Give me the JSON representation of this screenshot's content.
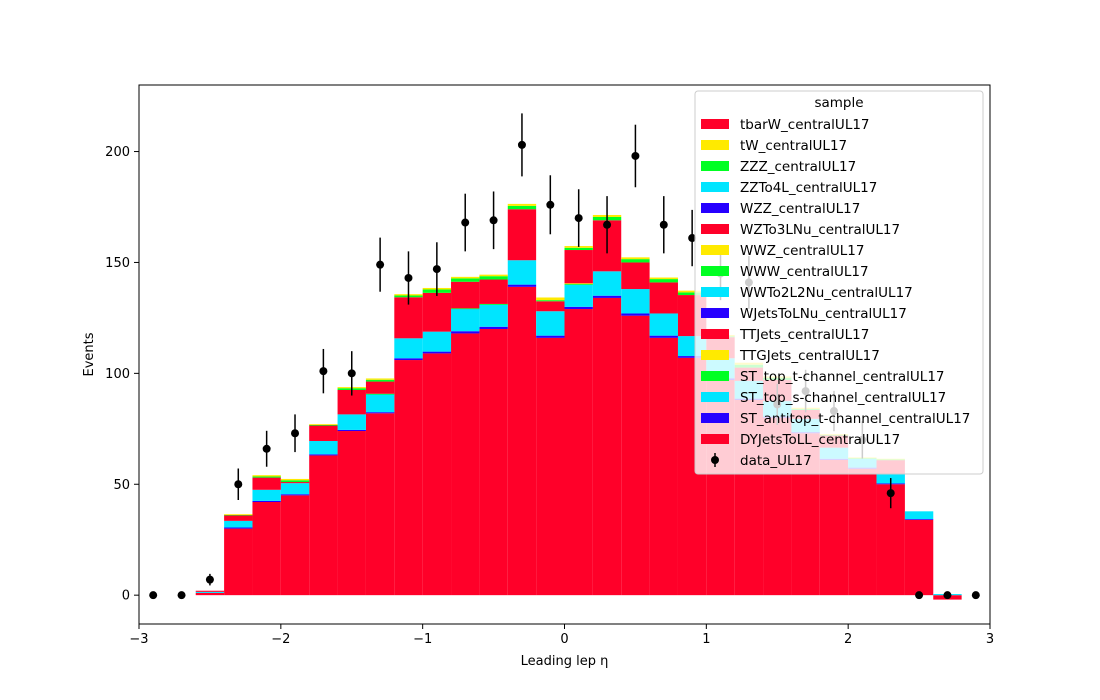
{
  "chart_data": {
    "type": "bar",
    "stacked": true,
    "xlabel": "Leading lep η",
    "ylabel": "Events",
    "xlim": [
      -3,
      3
    ],
    "ylim": [
      -13,
      230
    ],
    "xticks": [
      -3,
      -2,
      -1,
      0,
      1,
      2,
      3
    ],
    "xtick_labels": [
      "−3",
      "−2",
      "−1",
      "0",
      "1",
      "2",
      "3"
    ],
    "yticks": [
      0,
      50,
      100,
      150,
      200
    ],
    "grid": false,
    "legend_title": "sample",
    "legend_position": "top-right",
    "bin_edges": [
      -3.0,
      -2.8,
      -2.6,
      -2.4,
      -2.2,
      -2.0,
      -1.8,
      -1.6,
      -1.4,
      -1.2,
      -1.0,
      -0.8,
      -0.6,
      -0.4,
      -0.2,
      0.0,
      0.2,
      0.4,
      0.6,
      0.8,
      1.0,
      1.2,
      1.4,
      1.6,
      1.8,
      2.0,
      2.2,
      2.4,
      2.6,
      2.8,
      3.0
    ],
    "series": [
      {
        "name": "DYJetsToLL_centralUL17",
        "color": "#ff0029",
        "values": [
          0,
          0,
          1,
          30,
          42,
          45,
          63,
          74,
          82,
          106,
          109,
          118,
          120,
          139,
          116,
          129,
          134,
          126,
          116,
          107,
          97,
          88,
          80,
          73,
          61,
          57,
          50,
          34,
          -2,
          0
        ]
      },
      {
        "name": "ST_antitop_t-channel_centralUL17",
        "color": "#2600ff",
        "values": [
          0,
          0,
          0,
          0.5,
          0.5,
          0.5,
          0.5,
          0.5,
          0.5,
          0.8,
          0.8,
          1,
          1,
          1,
          1,
          1,
          1,
          1,
          1,
          0.8,
          0.8,
          0.6,
          0.5,
          0.5,
          0.5,
          0.5,
          0.4,
          0.3,
          0,
          0
        ]
      },
      {
        "name": "ST_top_s-channel_centralUL17",
        "color": "#00e5ff",
        "values": [
          0,
          0,
          0.5,
          3,
          5,
          5,
          6,
          7,
          8,
          9,
          9,
          10,
          10,
          11,
          11,
          10,
          11,
          11,
          10,
          9,
          9,
          8,
          7,
          6,
          5,
          4,
          4,
          3.5,
          0.5,
          0
        ]
      },
      {
        "name": "ST_top_t-channel_centralUL17",
        "color": "#00ff22",
        "values": [
          0,
          0,
          0,
          0,
          0,
          0,
          0,
          0,
          0.3,
          0,
          0,
          0.3,
          0.3,
          0,
          0,
          0.3,
          0,
          0,
          0,
          0,
          0,
          0,
          0,
          0,
          0,
          0,
          0,
          0,
          0,
          0
        ]
      },
      {
        "name": "TTGJets_centralUL17",
        "color": "#ffea00",
        "values": [
          0,
          0,
          0,
          0,
          0,
          0,
          0,
          0,
          0,
          0,
          0,
          0,
          0,
          0,
          0,
          0.3,
          0,
          0,
          0,
          0,
          0,
          0,
          0,
          0,
          0,
          0,
          0,
          0,
          0,
          0
        ]
      },
      {
        "name": "TTJets_centralUL17",
        "color": "#ff0029",
        "values": [
          0,
          0,
          0.5,
          2.5,
          5.5,
          0.5,
          7,
          11,
          5.5,
          18.5,
          17.5,
          12,
          11,
          23,
          4.5,
          15,
          23,
          12,
          14,
          18.5,
          9.5,
          6,
          9.5,
          4,
          5.5,
          0,
          6.5,
          0,
          0,
          0
        ]
      },
      {
        "name": "WJetsToLNu_centralUL17",
        "color": "#2600ff",
        "values": [
          0,
          0,
          0,
          0,
          0,
          0,
          0,
          0,
          0,
          0,
          0,
          0,
          0,
          0,
          0,
          0,
          0,
          0,
          0,
          0,
          0,
          0,
          0,
          0,
          0,
          0,
          0,
          0,
          0,
          0
        ]
      },
      {
        "name": "WWTo2L2Nu_centralUL17",
        "color": "#00e5ff",
        "values": [
          0,
          0,
          0,
          0,
          0,
          0,
          0,
          0,
          0,
          0,
          0,
          0,
          0,
          0,
          0,
          0,
          0,
          0,
          0,
          0,
          0,
          0,
          0,
          0,
          0,
          0,
          0,
          0,
          0,
          0
        ]
      },
      {
        "name": "WWW_centralUL17",
        "color": "#00ff22",
        "values": [
          0,
          0,
          0,
          0.3,
          0.5,
          0.8,
          0.3,
          0.8,
          0.8,
          0.8,
          1.5,
          1.5,
          1.5,
          1.5,
          0.5,
          1,
          1.5,
          1.5,
          1.5,
          1.2,
          0.4,
          1.3,
          1,
          0.4,
          0.3,
          0.3,
          0.3,
          0,
          0,
          0
        ]
      },
      {
        "name": "WWZ_centralUL17",
        "color": "#ffea00",
        "values": [
          0,
          0,
          0,
          0.2,
          0.6,
          0.6,
          0.3,
          0.5,
          0.6,
          0.6,
          0.7,
          0.7,
          0.7,
          0.9,
          1.2,
          0.8,
          0.9,
          0.8,
          0.7,
          0.8,
          0.6,
          0.9,
          0.6,
          0.6,
          0.3,
          0.3,
          0.3,
          0,
          0,
          0
        ]
      },
      {
        "name": "WZTo3LNu_centralUL17",
        "color": "#ff0029",
        "values": [
          0,
          0,
          0,
          0,
          0,
          0,
          0,
          0,
          0,
          0,
          0,
          0,
          0,
          0,
          0,
          0,
          0,
          0,
          0,
          0,
          0,
          0,
          0,
          0,
          0,
          0,
          0,
          0,
          0,
          0
        ]
      },
      {
        "name": "WZZ_centralUL17",
        "color": "#2600ff",
        "values": [
          0,
          0,
          0,
          0,
          0,
          0,
          0,
          0,
          0,
          0,
          0,
          0,
          0,
          0,
          0,
          0,
          0,
          0,
          0,
          0,
          0,
          0,
          0,
          0,
          0,
          0,
          0,
          0,
          0,
          0
        ]
      },
      {
        "name": "ZZTo4L_centralUL17",
        "color": "#00e5ff",
        "values": [
          0,
          0,
          0,
          0,
          0,
          0,
          0,
          0,
          0,
          0,
          0,
          0,
          0,
          0,
          0,
          0,
          0,
          0,
          0,
          0,
          0,
          0,
          0,
          0,
          0,
          0,
          0,
          0,
          0,
          0
        ]
      },
      {
        "name": "ZZZ_centralUL17",
        "color": "#00ff22",
        "values": [
          0,
          0,
          0,
          0,
          0,
          0,
          0,
          0,
          0,
          0,
          0,
          0,
          0,
          0,
          0,
          0,
          0,
          0,
          0,
          0,
          0,
          0,
          0,
          0,
          0,
          0,
          0,
          0,
          0,
          0
        ]
      },
      {
        "name": "tW_centralUL17",
        "color": "#ffea00",
        "values": [
          0,
          0,
          0,
          0,
          0,
          0,
          0,
          0,
          0,
          0,
          0,
          0,
          0,
          0,
          0,
          0,
          0,
          0,
          0,
          0,
          0,
          0,
          0,
          0,
          0,
          0,
          0,
          0,
          0,
          0
        ]
      },
      {
        "name": "tbarW_centralUL17",
        "color": "#ff0029",
        "values": [
          0,
          0,
          0,
          0,
          0,
          0,
          0,
          0,
          0,
          0,
          0,
          0,
          0,
          0,
          0,
          0,
          0,
          0,
          0,
          0,
          0,
          0,
          0,
          0,
          0,
          0,
          0,
          0,
          0,
          0
        ]
      }
    ],
    "data": {
      "name": "data_UL17",
      "color": "#000000",
      "x": [
        -2.9,
        -2.7,
        -2.5,
        -2.3,
        -2.1,
        -1.9,
        -1.7,
        -1.5,
        -1.3,
        -1.1,
        -0.9,
        -0.7,
        -0.5,
        -0.3,
        -0.1,
        0.1,
        0.3,
        0.5,
        0.7,
        0.9,
        1.1,
        1.3,
        1.5,
        1.7,
        1.9,
        2.1,
        2.3,
        2.5,
        2.7,
        2.9
      ],
      "y": [
        0,
        0,
        7,
        50,
        66,
        73,
        101,
        100,
        149,
        143,
        147,
        168,
        169,
        203,
        176,
        170,
        167,
        198,
        167,
        161,
        145,
        141,
        86,
        92,
        83,
        70,
        46,
        0,
        0,
        0
      ],
      "yerr": [
        0,
        0,
        2.6,
        7.1,
        8.1,
        8.5,
        10,
        10,
        12.2,
        12,
        12.1,
        13,
        13,
        14.2,
        13.3,
        13,
        12.9,
        14.1,
        12.9,
        12.7,
        12,
        11.9,
        9.3,
        9.6,
        9.1,
        8.4,
        6.8,
        0,
        0,
        0
      ]
    },
    "legend_entries": [
      "tbarW_centralUL17",
      "tW_centralUL17",
      "ZZZ_centralUL17",
      "ZZTo4L_centralUL17",
      "WZZ_centralUL17",
      "WZTo3LNu_centralUL17",
      "WWZ_centralUL17",
      "WWW_centralUL17",
      "WWTo2L2Nu_centralUL17",
      "WJetsToLNu_centralUL17",
      "TTJets_centralUL17",
      "TTGJets_centralUL17",
      "ST_top_t-channel_centralUL17",
      "ST_top_s-channel_centralUL17",
      "ST_antitop_t-channel_centralUL17",
      "DYJetsToLL_centralUL17",
      "data_UL17"
    ]
  }
}
